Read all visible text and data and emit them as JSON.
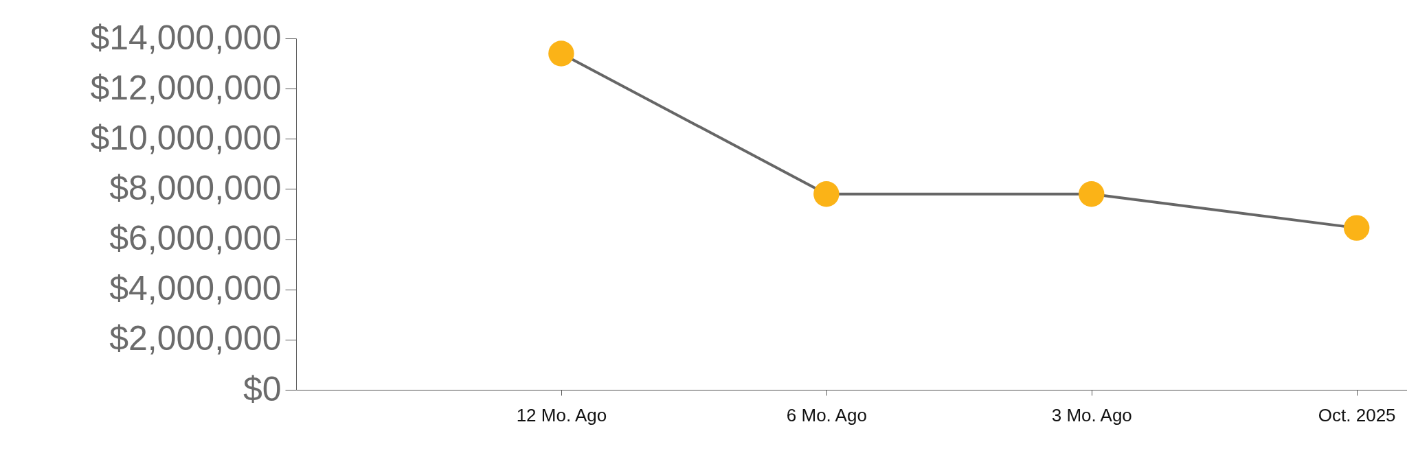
{
  "chart_data": {
    "type": "line",
    "categories": [
      "12 Mo. Ago",
      "6 Mo. Ago",
      "3 Mo. Ago",
      "Oct. 2025"
    ],
    "series": [
      {
        "color": "#666666",
        "colors": [
          "#fbb317",
          "#fbb317",
          "#fbb317",
          "#fbb317"
        ],
        "values": [
          13400000,
          7800000,
          7800000,
          6450000
        ]
      }
    ],
    "marker": "circle",
    "grid": false,
    "ylim": [
      0,
      14000000
    ],
    "yticks": [
      {
        "value": 0,
        "label": "$0"
      },
      {
        "value": 2000000,
        "label": "$2,000,000"
      },
      {
        "value": 4000000,
        "label": "$4,000,000"
      },
      {
        "value": 6000000,
        "label": "$6,000,000"
      },
      {
        "value": 8000000,
        "label": "$8,000,000"
      },
      {
        "value": 10000000,
        "label": "$10,000,000"
      },
      {
        "value": 12000000,
        "label": "$12,000,000"
      },
      {
        "value": 14000000,
        "label": "$14,000,000"
      }
    ]
  }
}
